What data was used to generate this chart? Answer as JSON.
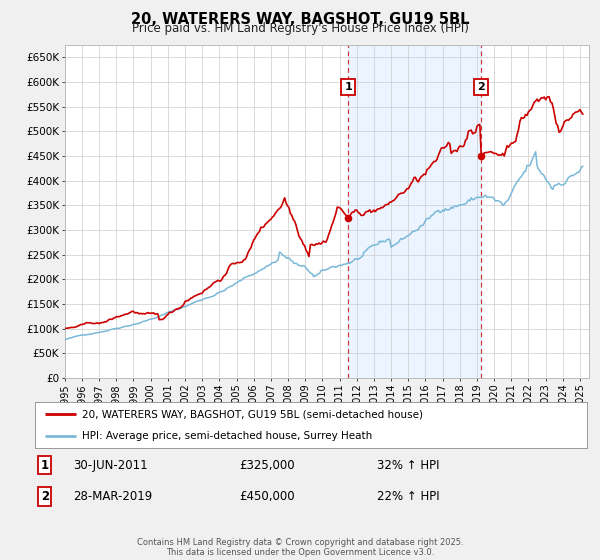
{
  "title": "20, WATERERS WAY, BAGSHOT, GU19 5BL",
  "subtitle": "Price paid vs. HM Land Registry's House Price Index (HPI)",
  "legend_line1": "20, WATERERS WAY, BAGSHOT, GU19 5BL (semi-detached house)",
  "legend_line2": "HPI: Average price, semi-detached house, Surrey Heath",
  "footnote": "Contains HM Land Registry data © Crown copyright and database right 2025.\nThis data is licensed under the Open Government Licence v3.0.",
  "hpi_color": "#7ab8d9",
  "price_color": "#cc0000",
  "annotation1": {
    "label": "1",
    "date_x": 2011.5,
    "value": 325000,
    "text": "30-JUN-2011",
    "price": "£325,000",
    "pct": "32% ↑ HPI"
  },
  "annotation2": {
    "label": "2",
    "date_x": 2019.25,
    "value": 450000,
    "text": "28-MAR-2019",
    "price": "£450,000",
    "pct": "22% ↑ HPI"
  },
  "xmin": 1995,
  "xmax": 2025.5,
  "ymin": 0,
  "ymax": 675000,
  "yticks": [
    0,
    50000,
    100000,
    150000,
    200000,
    250000,
    300000,
    350000,
    400000,
    450000,
    500000,
    550000,
    600000,
    650000
  ],
  "ytick_labels": [
    "£0",
    "£50K",
    "£100K",
    "£150K",
    "£200K",
    "£250K",
    "£300K",
    "£350K",
    "£400K",
    "£450K",
    "£500K",
    "£550K",
    "£600K",
    "£650K"
  ],
  "xticks": [
    1995,
    1996,
    1997,
    1998,
    1999,
    2000,
    2001,
    2002,
    2003,
    2004,
    2005,
    2006,
    2007,
    2008,
    2009,
    2010,
    2011,
    2012,
    2013,
    2014,
    2015,
    2016,
    2017,
    2018,
    2019,
    2020,
    2021,
    2022,
    2023,
    2024,
    2025
  ],
  "bg_color": "#f0f0f0",
  "plot_bg_color": "#ffffff",
  "grid_color": "#cccccc",
  "vline1_x": 2011.5,
  "vline2_x": 2019.25,
  "shaded_region_start": 2011.5,
  "shaded_region_end": 2019.25
}
